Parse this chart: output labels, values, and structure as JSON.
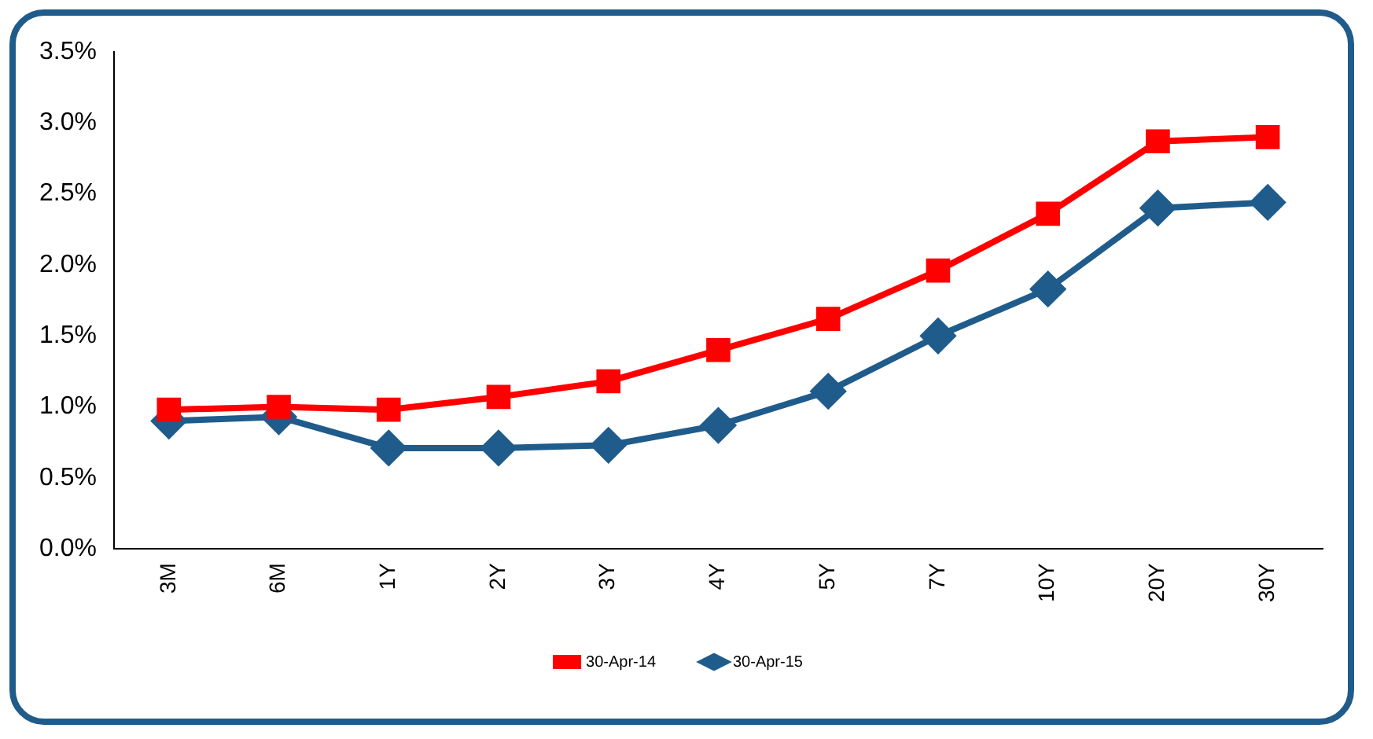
{
  "chart_data": {
    "type": "line",
    "categories": [
      "3M",
      "6M",
      "1Y",
      "2Y",
      "3Y",
      "4Y",
      "5Y",
      "7Y",
      "10Y",
      "20Y",
      "30Y"
    ],
    "ylim": [
      0,
      3.5
    ],
    "yticks": [
      {
        "value": 0,
        "label": "0.0%"
      },
      {
        "value": 0.5,
        "label": "0.5%"
      },
      {
        "value": 1,
        "label": "1.0%"
      },
      {
        "value": 1.5,
        "label": "1.5%"
      },
      {
        "value": 2,
        "label": "2.0%"
      },
      {
        "value": 2.5,
        "label": "2.5%"
      },
      {
        "value": 3,
        "label": "3.0%"
      },
      {
        "value": 3.5,
        "label": "3.5%"
      }
    ],
    "series": [
      {
        "name": "30-Apr-15",
        "color": "#1f5c8b",
        "marker": "diamond",
        "values": [
          0.9,
          0.93,
          0.71,
          0.71,
          0.73,
          0.87,
          1.11,
          1.5,
          1.83,
          2.4,
          2.44
        ]
      },
      {
        "name": "30-Apr-14",
        "color": "#ff0000",
        "marker": "square",
        "values": [
          0.98,
          1.0,
          0.98,
          1.07,
          1.18,
          1.4,
          1.62,
          1.96,
          2.36,
          2.87,
          2.9
        ]
      }
    ],
    "legend": "bottom",
    "grid": false
  }
}
